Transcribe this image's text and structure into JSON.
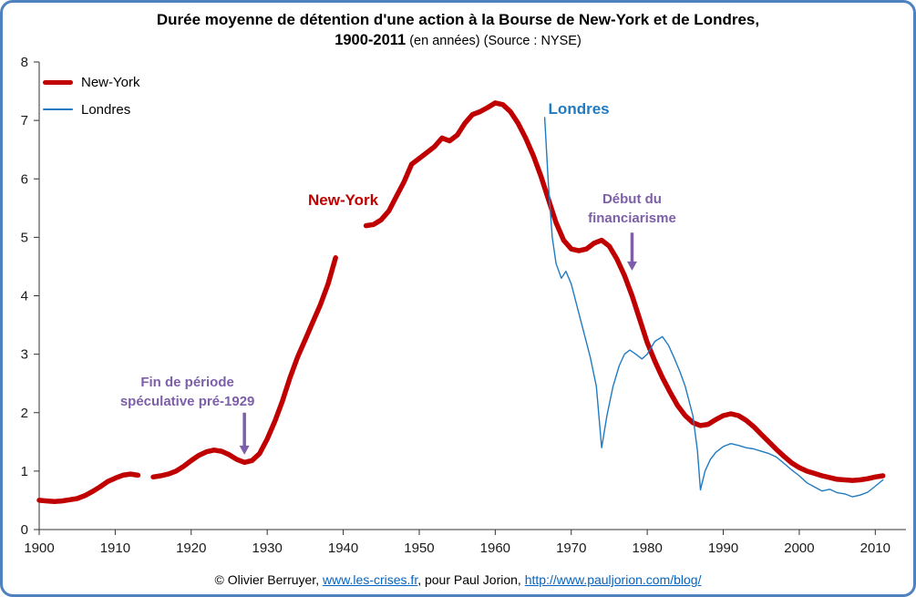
{
  "window": {
    "border_color": "#4E81BD",
    "background": "#FFFFFF"
  },
  "title": {
    "line1": "Durée moyenne de détention d'une action à la Bourse de New-York et de Londres,",
    "line2_bold": "1900-2011",
    "line2_rest": " (en années) (Source : NYSE)"
  },
  "legend": {
    "items": [
      {
        "label": "New-York",
        "color": "#C00000",
        "style": "thick"
      },
      {
        "label": "Londres",
        "color": "#1F7BC2",
        "style": "thin"
      }
    ]
  },
  "footer": {
    "text1": "© Olivier Berruyer, ",
    "link1": "www.les-crises.fr",
    "text2": ",  pour Paul Jorion, ",
    "link2": "http://www.pauljorion.com/blog/",
    "link_color": "#0563C1"
  },
  "chart_data": {
    "type": "line",
    "title": "Durée moyenne de détention d'une action à la Bourse de New-York et de Londres, 1900-2011 (en années) (Source : NYSE)",
    "xlabel": "",
    "ylabel": "",
    "x_range": [
      1900,
      2012
    ],
    "y_range": [
      0,
      8
    ],
    "x_ticks": [
      1900,
      1910,
      1920,
      1930,
      1940,
      1950,
      1960,
      1970,
      1980,
      1990,
      2000,
      2010
    ],
    "y_ticks": [
      0,
      1,
      2,
      3,
      4,
      5,
      6,
      7,
      8
    ],
    "grid": false,
    "axis_color": "#333333",
    "series": [
      {
        "name": "New-York",
        "color": "#C00000",
        "width": 5.5,
        "segments": [
          [
            [
              1900,
              0.5
            ],
            [
              1901,
              0.49
            ],
            [
              1902,
              0.48
            ],
            [
              1903,
              0.49
            ],
            [
              1904,
              0.51
            ],
            [
              1905,
              0.53
            ],
            [
              1906,
              0.58
            ],
            [
              1907,
              0.65
            ],
            [
              1908,
              0.73
            ],
            [
              1909,
              0.82
            ],
            [
              1910,
              0.88
            ],
            [
              1911,
              0.93
            ],
            [
              1912,
              0.95
            ],
            [
              1913,
              0.93
            ]
          ],
          [
            [
              1915,
              0.9
            ],
            [
              1916,
              0.92
            ],
            [
              1917,
              0.95
            ],
            [
              1918,
              1.0
            ],
            [
              1919,
              1.08
            ],
            [
              1920,
              1.18
            ],
            [
              1921,
              1.27
            ],
            [
              1922,
              1.33
            ],
            [
              1923,
              1.36
            ],
            [
              1924,
              1.34
            ],
            [
              1925,
              1.28
            ],
            [
              1926,
              1.2
            ],
            [
              1927,
              1.15
            ],
            [
              1928,
              1.18
            ],
            [
              1929,
              1.3
            ],
            [
              1930,
              1.55
            ],
            [
              1931,
              1.85
            ],
            [
              1932,
              2.2
            ],
            [
              1933,
              2.6
            ],
            [
              1934,
              2.95
            ],
            [
              1935,
              3.25
            ],
            [
              1936,
              3.55
            ],
            [
              1937,
              3.85
            ],
            [
              1938,
              4.2
            ],
            [
              1939,
              4.65
            ]
          ],
          [
            [
              1943,
              5.2
            ],
            [
              1944,
              5.22
            ],
            [
              1945,
              5.3
            ],
            [
              1946,
              5.45
            ],
            [
              1947,
              5.7
            ],
            [
              1948,
              5.95
            ],
            [
              1949,
              6.25
            ],
            [
              1950,
              6.35
            ],
            [
              1951,
              6.45
            ],
            [
              1952,
              6.55
            ],
            [
              1953,
              6.7
            ],
            [
              1954,
              6.65
            ],
            [
              1955,
              6.75
            ],
            [
              1956,
              6.95
            ],
            [
              1957,
              7.1
            ],
            [
              1958,
              7.15
            ],
            [
              1959,
              7.22
            ],
            [
              1960,
              7.3
            ],
            [
              1961,
              7.27
            ],
            [
              1962,
              7.15
            ],
            [
              1963,
              6.95
            ],
            [
              1964,
              6.7
            ],
            [
              1965,
              6.4
            ],
            [
              1966,
              6.05
            ],
            [
              1967,
              5.65
            ],
            [
              1968,
              5.25
            ],
            [
              1969,
              4.95
            ],
            [
              1970,
              4.8
            ],
            [
              1971,
              4.77
            ],
            [
              1972,
              4.8
            ],
            [
              1973,
              4.9
            ],
            [
              1974,
              4.95
            ],
            [
              1975,
              4.85
            ],
            [
              1976,
              4.63
            ],
            [
              1977,
              4.35
            ],
            [
              1978,
              4.0
            ],
            [
              1979,
              3.6
            ],
            [
              1980,
              3.2
            ],
            [
              1981,
              2.88
            ],
            [
              1982,
              2.6
            ],
            [
              1983,
              2.35
            ],
            [
              1984,
              2.12
            ],
            [
              1985,
              1.95
            ],
            [
              1986,
              1.83
            ],
            [
              1987,
              1.78
            ],
            [
              1988,
              1.8
            ],
            [
              1989,
              1.88
            ],
            [
              1990,
              1.95
            ],
            [
              1991,
              1.98
            ],
            [
              1992,
              1.95
            ],
            [
              1993,
              1.87
            ],
            [
              1994,
              1.76
            ],
            [
              1995,
              1.63
            ],
            [
              1996,
              1.5
            ],
            [
              1997,
              1.37
            ],
            [
              1998,
              1.25
            ],
            [
              1999,
              1.14
            ],
            [
              2000,
              1.06
            ],
            [
              2001,
              1.0
            ],
            [
              2002,
              0.96
            ],
            [
              2003,
              0.92
            ],
            [
              2004,
              0.89
            ],
            [
              2005,
              0.86
            ],
            [
              2006,
              0.85
            ],
            [
              2007,
              0.84
            ],
            [
              2008,
              0.85
            ],
            [
              2009,
              0.87
            ],
            [
              2010,
              0.9
            ],
            [
              2011,
              0.92
            ]
          ]
        ]
      },
      {
        "name": "Londres",
        "color": "#1F7BC2",
        "width": 1.4,
        "segments": [
          [
            [
              1966.5,
              7.05
            ],
            [
              1967,
              5.9
            ],
            [
              1967.5,
              5.0
            ],
            [
              1968,
              4.55
            ],
            [
              1968.7,
              4.3
            ],
            [
              1969.3,
              4.42
            ],
            [
              1970,
              4.2
            ],
            [
              1970.7,
              3.85
            ],
            [
              1971.5,
              3.45
            ],
            [
              1972.5,
              2.95
            ],
            [
              1973.3,
              2.45
            ],
            [
              1974,
              1.4
            ],
            [
              1974.7,
              1.95
            ],
            [
              1975.5,
              2.45
            ],
            [
              1976.3,
              2.8
            ],
            [
              1977,
              3.0
            ],
            [
              1977.7,
              3.07
            ],
            [
              1978.5,
              3.0
            ],
            [
              1979.3,
              2.92
            ],
            [
              1980,
              3.0
            ],
            [
              1981,
              3.22
            ],
            [
              1982,
              3.3
            ],
            [
              1982.8,
              3.15
            ],
            [
              1983.5,
              2.95
            ],
            [
              1984.3,
              2.7
            ],
            [
              1985,
              2.45
            ],
            [
              1986,
              1.95
            ],
            [
              1986.6,
              1.35
            ],
            [
              1987,
              0.68
            ],
            [
              1987.6,
              1.0
            ],
            [
              1988.3,
              1.2
            ],
            [
              1989,
              1.32
            ],
            [
              1990,
              1.42
            ],
            [
              1991,
              1.47
            ],
            [
              1992,
              1.44
            ],
            [
              1993,
              1.4
            ],
            [
              1994,
              1.38
            ],
            [
              1995,
              1.34
            ],
            [
              1996,
              1.3
            ],
            [
              1997,
              1.24
            ],
            [
              1998,
              1.13
            ],
            [
              1999,
              1.02
            ],
            [
              2000,
              0.92
            ],
            [
              2001,
              0.8
            ],
            [
              2002,
              0.73
            ],
            [
              2003,
              0.66
            ],
            [
              2004,
              0.69
            ],
            [
              2005,
              0.63
            ],
            [
              2006,
              0.61
            ],
            [
              2007,
              0.56
            ],
            [
              2008,
              0.59
            ],
            [
              2009,
              0.64
            ],
            [
              2010,
              0.74
            ],
            [
              2011,
              0.85
            ]
          ]
        ]
      }
    ],
    "inline_labels": [
      {
        "text": "New-York",
        "x": 1940,
        "y": 5.55,
        "color": "#C00000"
      },
      {
        "text": "Londres",
        "x": 1971,
        "y": 7.11,
        "color": "#1F7BC2"
      }
    ],
    "annotations": [
      {
        "lines": [
          "Fin de période",
          "spéculative pré-1929"
        ],
        "x": 1919.5,
        "y": 2.45,
        "arrow": {
          "x": 1927,
          "y1": 2.0,
          "y2": 1.28
        },
        "color": "#7C5FA8"
      },
      {
        "lines": [
          "Début du",
          "financiarisme"
        ],
        "x": 1978,
        "y": 5.58,
        "arrow": {
          "x": 1978,
          "y1": 5.08,
          "y2": 4.43
        },
        "color": "#7C5FA8"
      }
    ],
    "legend_position": "top-left"
  }
}
